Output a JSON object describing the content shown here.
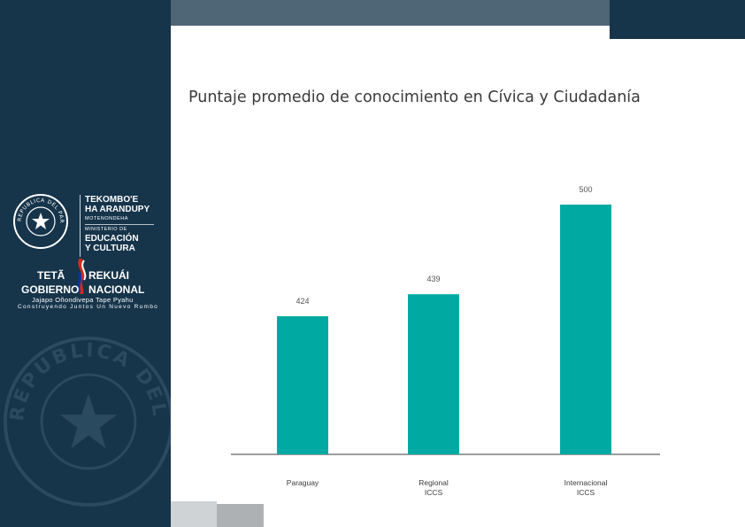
{
  "slide": {
    "title": "Puntaje promedio de conocimiento en Cívica y Ciudadanía",
    "colors": {
      "panel": "#16344a",
      "topbar": "#4f6677",
      "bar": "#00aaa3"
    }
  },
  "logo": {
    "ministry_line1": "TEKOMBO'E",
    "ministry_line2": "HA ARANDUPY",
    "ministry_guarani": "MOTENONDEHA",
    "ministry_prefix": "MINISTERIO DE",
    "ministry_line3": "EDUCACIÓN",
    "ministry_line4": "Y CULTURA",
    "gov_1": "TETÃ",
    "gov_2": "REKUÁI",
    "gov_3": "GOBIERNO",
    "gov_4": "NACIONAL",
    "slogan_gn": "Jajapo Oñondivepa Tape Pyahu",
    "slogan_es": "Construyendo Juntos Un Nuevo Rumbo",
    "seal_text": "REPUBLICA DEL PARAGUAY"
  },
  "chart_data": {
    "type": "bar",
    "title": "Puntaje promedio de conocimiento en Cívica y Ciudadanía",
    "categories": [
      [
        "Paraguay"
      ],
      [
        "Regional",
        "ICCS"
      ],
      [
        "Internacional",
        "ICCS"
      ]
    ],
    "values": [
      424,
      439,
      500
    ],
    "data_labels": [
      "424",
      "439",
      "500"
    ],
    "color": "#00aaa3",
    "ylim": [
      330,
      510
    ],
    "grid": false,
    "xlabel": "",
    "ylabel": ""
  }
}
